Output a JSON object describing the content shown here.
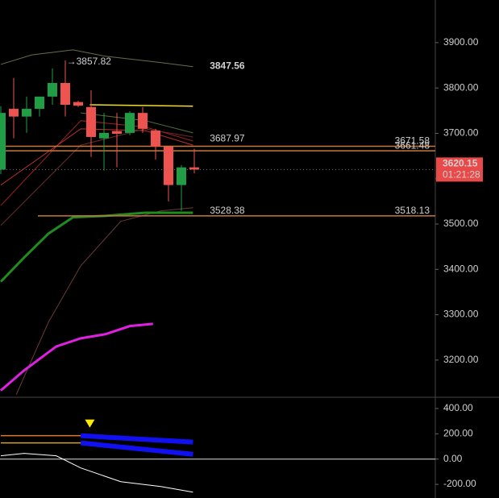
{
  "chart_data": [
    {
      "type": "candlestick",
      "ylim": [
        3118,
        3994
      ],
      "yticks": [
        {
          "value": 3200,
          "label": "3200.00"
        },
        {
          "value": 3300,
          "label": "3300.00"
        },
        {
          "value": 3400,
          "label": "3400.00"
        },
        {
          "value": 3500,
          "label": "3500.00"
        },
        {
          "value": 3600,
          "label": "3600.00"
        },
        {
          "value": 3700,
          "label": "3700.00"
        },
        {
          "value": 3800,
          "label": "3800.00"
        },
        {
          "value": 3900,
          "label": "3900.00"
        }
      ],
      "up_color": "#1f9e45",
      "down_color": "#ef5350",
      "open": [
        3620,
        3754,
        3737,
        3754,
        3781,
        3811,
        3769,
        3758,
        3689,
        3705,
        3701,
        3745,
        3706,
        3671,
        3586,
        3625
      ],
      "high": [
        3760,
        3822,
        3781,
        3781,
        3843,
        3861,
        3772,
        3795,
        3745,
        3745,
        3749,
        3758,
        3710,
        3671,
        3630,
        3666
      ],
      "low": [
        3610,
        3689,
        3701,
        3737,
        3763,
        3737,
        3758,
        3648,
        3618,
        3625,
        3696,
        3701,
        3642,
        3550,
        3529,
        3612
      ],
      "close": [
        3745,
        3737,
        3754,
        3781,
        3811,
        3763,
        3761,
        3692,
        3701,
        3699,
        3745,
        3710,
        3671,
        3586,
        3625,
        3620.15
      ],
      "lines": [
        {
          "color": "#6b6b4a",
          "x": [
            0,
            2.4,
            5.6,
            8.1,
            12.4,
            14.9
          ],
          "values": [
            3852,
            3873,
            3884,
            3870,
            3856,
            3847
          ]
        },
        {
          "color": "#6b3a3a",
          "x": [
            1.2,
            3.7,
            6.2,
            9.3,
            12.4,
            14.9
          ],
          "values": [
            3124,
            3284,
            3408,
            3506,
            3529,
            3536
          ]
        },
        {
          "color": "#a02020",
          "x": [
            0,
            6.2,
            11.2,
            14.9
          ],
          "values": [
            3541,
            3728,
            3714,
            3683
          ]
        },
        {
          "color": "#c03030",
          "x": [
            0,
            6.2,
            11.2,
            14.9
          ],
          "values": [
            3586,
            3710,
            3706,
            3674
          ]
        },
        {
          "color": "#6a2a2a",
          "x": [
            0,
            6.2,
            11.2,
            14.9
          ],
          "values": [
            3497,
            3674,
            3710,
            3692
          ]
        },
        {
          "color": "#55703a",
          "x": [
            6.2,
            11.2,
            14.9
          ],
          "values": [
            3745,
            3728,
            3701
          ]
        },
        {
          "color": "#1e8c1e",
          "x": [
            0,
            1.8,
            3.7,
            5.6,
            8.1,
            11.2,
            14.9
          ],
          "values": [
            3373,
            3426,
            3479,
            3515,
            3518,
            3525,
            3525
          ]
        },
        {
          "color": "#e020e0",
          "x": [
            0,
            1.8,
            4.3,
            6.2,
            8.1,
            10,
            11.8
          ],
          "values": [
            3133,
            3177,
            3230,
            3248,
            3257,
            3275,
            3280
          ]
        },
        {
          "color": "#f0e020",
          "x": [
            6.9,
            14.9
          ],
          "values": [
            3763,
            3760
          ]
        }
      ],
      "hlines": [
        {
          "value": 3671.58,
          "color": "#c8783c"
        },
        {
          "value": 3661.48,
          "color": "#c8783c"
        },
        {
          "value": 3518.13,
          "color": "#c8783c"
        }
      ],
      "annotations": [
        {
          "label": "→3857.82",
          "value": 3857.82,
          "x": 5.1,
          "color": "#bdbdbd"
        },
        {
          "label": "3847.56",
          "value": 3847.56,
          "x": 16.2,
          "color": "#f0f020"
        },
        {
          "label": "3687.97",
          "value": 3687.97,
          "x": 16.2,
          "color": "#e03030"
        },
        {
          "label": "3528.38",
          "value": 3528.38,
          "x": 16.2,
          "color": "#c050c0"
        }
      ],
      "last_price": 3620.15,
      "countdown": "01:21:28"
    },
    {
      "type": "line",
      "ylim": [
        -308,
        489
      ],
      "yticks": [
        {
          "value": -200,
          "label": "-200.00"
        },
        {
          "value": 0,
          "label": "0.00"
        },
        {
          "value": 200,
          "label": "200.00"
        },
        {
          "value": 400,
          "label": "400.00"
        }
      ],
      "series": [
        {
          "color": "#e07830",
          "x": [
            0,
            6.2
          ],
          "values": [
            185,
            185
          ]
        },
        {
          "color": "#d8a030",
          "x": [
            0,
            6.2
          ],
          "values": [
            128,
            128
          ]
        },
        {
          "color": "#1010f0",
          "x": [
            6.2,
            14.9
          ],
          "values": [
            185,
            134
          ]
        },
        {
          "color": "#1010f0",
          "x": [
            6.2,
            14.9
          ],
          "values": [
            128,
            38
          ]
        },
        {
          "color": "#ffffff",
          "x": [
            0,
            1.8,
            4.3,
            6.2,
            9.3,
            12.4,
            14.9
          ],
          "values": [
            26,
            45,
            26,
            -70,
            -179,
            -217,
            -262
          ]
        }
      ],
      "marker": {
        "x": 6.9,
        "value": 281,
        "color": "#ffeb00"
      }
    }
  ]
}
